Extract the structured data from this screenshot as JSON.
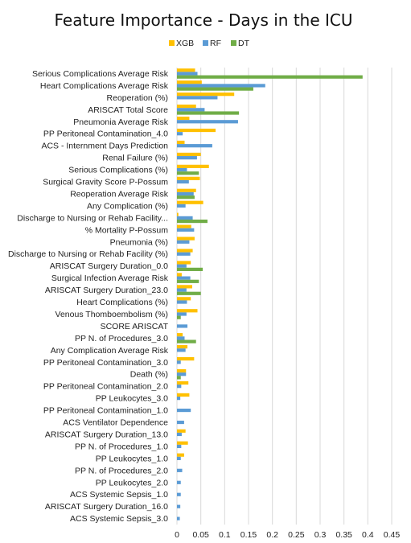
{
  "chart_data": {
    "type": "bar",
    "orientation": "horizontal",
    "title": "Feature Importance - Days in the ICU",
    "xlabel": "",
    "ylabel": "",
    "xlim": [
      0,
      0.45
    ],
    "xticks": [
      0,
      0.05,
      0.1,
      0.15,
      0.2,
      0.25,
      0.3,
      0.35,
      0.4,
      0.45
    ],
    "xtick_labels": [
      "0",
      "0.05",
      "0.1",
      "0.15",
      "0.2",
      "0.25",
      "0.3",
      "0.35",
      "0.4",
      "0.45"
    ],
    "grid": true,
    "legend_position": "top",
    "categories": [
      "Serious Complications Average Risk",
      "Heart Complications Average Risk",
      "Reoperation (%)",
      "ARISCAT Total Score",
      "Pneumonia Average Risk",
      "PP Peritoneal Contamination_4.0",
      "ACS - Internment Days Prediction",
      "Renal Failure (%)",
      "Serious Complications (%)",
      "Surgical Gravity Score P-Possum",
      "Reoperation Average Risk",
      "Any Complication (%)",
      "Discharge to Nursing or Rehab Facility...",
      "% Mortality P-Possum",
      "Pneumonia (%)",
      "Discharge to Nursing or Rehab Facility (%)",
      "ARISCAT Surgery Duration_0.0",
      "Surgical Infection Average Risk",
      "ARISCAT Surgery Duration_23.0",
      "Heart Complications (%)",
      "Venous Thomboembolism (%)",
      "SCORE ARISCAT",
      "PP N. of Procedures_3.0",
      "Any Complication Average Risk",
      "PP Peritoneal Contamination_3.0",
      "Death (%)",
      "PP Peritoneal Contamination_2.0",
      "PP Leukocytes_3.0",
      "PP Peritoneal Contamination_1.0",
      "ACS Ventilator Dependence",
      "ARISCAT Surgery Duration_13.0",
      "PP N. of Procedures_1.0",
      "PP Leukocytes_1.0",
      "PP N. of Procedures_2.0",
      "PP Leukocytes_2.0",
      "ACS Systemic Sepsis_1.0",
      "ARISCAT Surgery Duration_16.0",
      "ACS Systemic Sepsis_3.0"
    ],
    "series": [
      {
        "name": "XGB",
        "color": "#FFC000",
        "values": [
          0.038,
          0.052,
          0.12,
          0.04,
          0.026,
          0.081,
          0.016,
          0.05,
          0.067,
          0.048,
          0.04,
          0.055,
          0.003,
          0.03,
          0.037,
          0.033,
          0.029,
          0.01,
          0.032,
          0.029,
          0.043,
          0.0,
          0.012,
          0.022,
          0.036,
          0.019,
          0.024,
          0.026,
          0.0,
          0.0,
          0.018,
          0.023,
          0.015,
          0.0,
          0.0,
          0.0,
          0.0,
          0.0
        ]
      },
      {
        "name": "RF",
        "color": "#5B9BD5",
        "values": [
          0.043,
          0.185,
          0.085,
          0.058,
          0.128,
          0.012,
          0.074,
          0.042,
          0.021,
          0.025,
          0.035,
          0.018,
          0.033,
          0.036,
          0.026,
          0.028,
          0.02,
          0.028,
          0.02,
          0.021,
          0.02,
          0.022,
          0.016,
          0.018,
          0.008,
          0.019,
          0.009,
          0.007,
          0.029,
          0.015,
          0.01,
          0.009,
          0.008,
          0.011,
          0.008,
          0.008,
          0.007,
          0.006
        ]
      },
      {
        "name": "DT",
        "color": "#70AD47",
        "values": [
          0.389,
          0.16,
          0.0,
          0.13,
          0.0,
          0.0,
          0.0,
          0.0,
          0.046,
          0.0,
          0.037,
          0.0,
          0.064,
          0.0,
          0.0,
          0.0,
          0.054,
          0.046,
          0.05,
          0.0,
          0.008,
          0.0,
          0.04,
          0.0,
          0.0,
          0.008,
          0.0,
          0.0,
          0.0,
          0.0,
          0.0,
          0.0,
          0.0,
          0.0,
          0.0,
          0.0,
          0.0,
          0.0
        ]
      }
    ]
  }
}
